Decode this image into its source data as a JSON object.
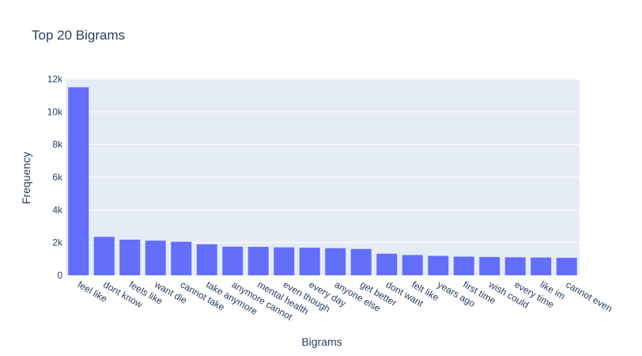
{
  "chart_data": {
    "type": "bar",
    "title": "Top 20 Bigrams",
    "xlabel": "Bigrams",
    "ylabel": "Frequency",
    "ylim": [
      0,
      12000
    ],
    "yticks": [
      0,
      2000,
      4000,
      6000,
      8000,
      10000,
      12000
    ],
    "ytick_labels": [
      "0",
      "2k",
      "4k",
      "6k",
      "8k",
      "10k",
      "12k"
    ],
    "grid": true,
    "bar_color": "#636efa",
    "plot_bg": "#e5ecf6",
    "categories": [
      "feel like",
      "dont know",
      "feels like",
      "want die",
      "cannot take",
      "take anymore",
      "anymore cannot",
      "mental health",
      "even though",
      "every day",
      "anyone else",
      "get better",
      "dont want",
      "felt like",
      "years ago",
      "first time",
      "wish could",
      "every time",
      "like im",
      "cannot even"
    ],
    "values": [
      11500,
      2350,
      2180,
      2120,
      2050,
      1900,
      1750,
      1740,
      1710,
      1690,
      1660,
      1610,
      1320,
      1240,
      1190,
      1140,
      1120,
      1100,
      1090,
      1070
    ]
  }
}
